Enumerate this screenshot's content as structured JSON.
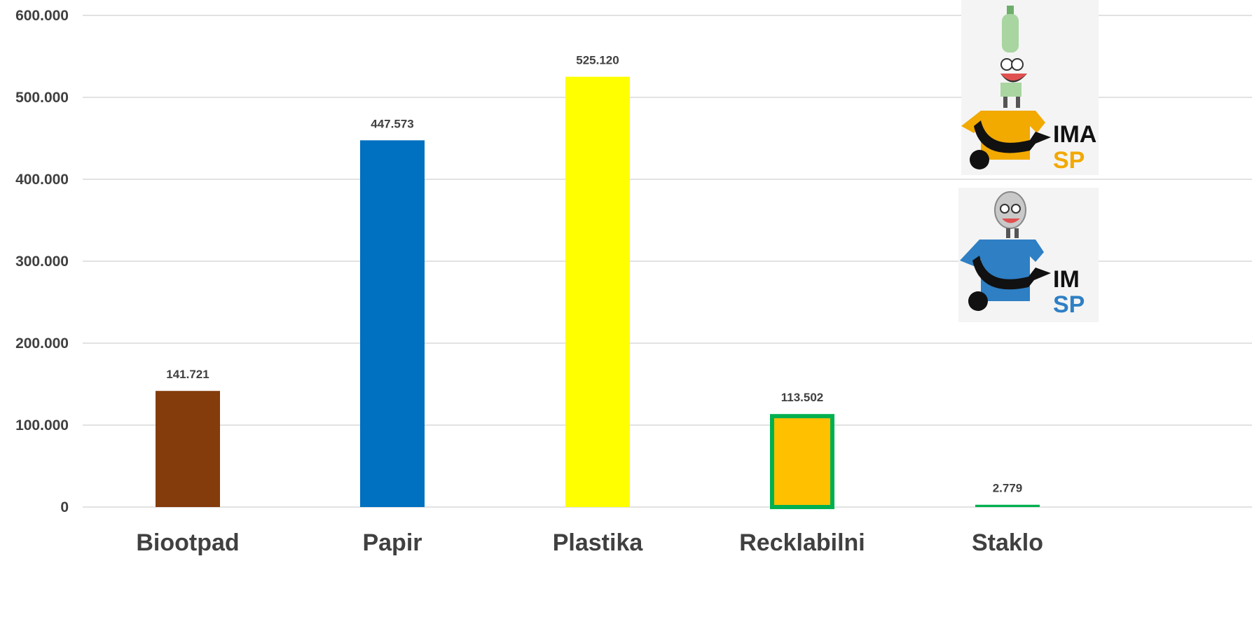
{
  "chart_data": {
    "type": "bar",
    "categories": [
      "Biootpad",
      "Papir",
      "Plastika",
      "Recklabilni",
      "Staklo"
    ],
    "values": [
      141721,
      447573,
      525120,
      113502,
      2779
    ],
    "value_labels": [
      "141.721",
      "447.573",
      "525.120",
      "113.502",
      "2.779"
    ],
    "colors": [
      "#843c0c",
      "#0070c0",
      "#ffff00",
      "#ffc000",
      "#00b050"
    ],
    "highlight_border": {
      "index": 3,
      "color": "#00b050"
    },
    "ylim": [
      0,
      600000
    ],
    "yticks": [
      0,
      100000,
      200000,
      300000,
      400000,
      500000,
      600000
    ],
    "ytick_labels": [
      "0",
      "100.000",
      "200.000",
      "300.000",
      "400.000",
      "500.000",
      "600.000"
    ],
    "grid": true,
    "legend": "none",
    "title": "",
    "xlabel": "",
    "ylabel": ""
  },
  "logos": [
    {
      "name": "bottle-mascot-logo",
      "shirt_color": "#f2a900",
      "mascot": "bottle",
      "text_top": "IMA",
      "text_bottom": "SP",
      "text_bottom_color": "#f2a900"
    },
    {
      "name": "can-mascot-logo",
      "shirt_color": "#2e7fc4",
      "mascot": "can",
      "text_top": "IM",
      "text_bottom": "SP",
      "text_bottom_color": "#2e7fc4"
    }
  ]
}
